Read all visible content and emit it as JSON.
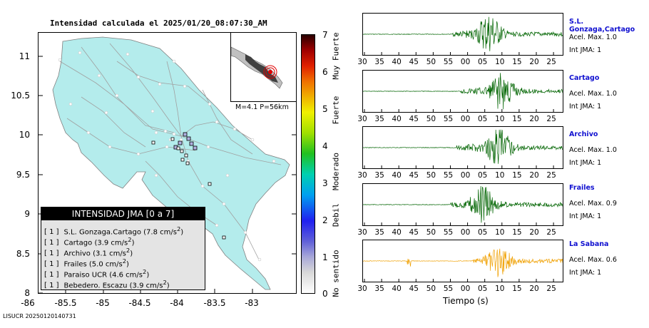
{
  "title": "Intensidad calculada el 2025/01/20_08:07:30_AM",
  "map": {
    "y_ticks": [
      "11",
      "10.5",
      "10",
      "9.5",
      "9",
      "8.5",
      "8"
    ],
    "x_ticks": [
      "-86",
      "-85.5",
      "-85",
      "-84.5",
      "-84",
      "-83.5",
      "-83"
    ],
    "event_info": "M=4.1 P=56km",
    "land_color": "#b4ecec"
  },
  "legend": {
    "title": "INTENSIDAD JMA [0 a 7]",
    "rows": [
      {
        "level": "[ 1 ]",
        "name": "S.L. Gonzaga.Cartago (7.8 cm/s",
        "sup": "2",
        "close": ")"
      },
      {
        "level": "[ 1 ]",
        "name": "Cartago (3.9 cm/s",
        "sup": "2",
        "close": ")"
      },
      {
        "level": "[ 1 ]",
        "name": "Archivo (3.1 cm/s",
        "sup": "2",
        "close": ")"
      },
      {
        "level": "[ 1 ]",
        "name": "Frailes (5.0 cm/s",
        "sup": "2",
        "close": ")"
      },
      {
        "level": "[ 1 ]",
        "name": "Paraiso UCR (4.6 cm/s",
        "sup": "2",
        "close": ")"
      },
      {
        "level": "[ 1 ]",
        "name": "Bebedero. Escazu (3.9 cm/s",
        "sup": "2",
        "close": ")"
      }
    ]
  },
  "colorbar": {
    "numbers": [
      "7",
      "6",
      "5",
      "4",
      "3",
      "2",
      "1",
      "0"
    ],
    "categories": [
      "Muy Fuerte",
      "Fuerte",
      "Moderado",
      "Debil",
      "No sentido"
    ]
  },
  "time_axis_labels": [
    "30",
    "35",
    "40",
    "45",
    "50",
    "55",
    "00",
    "05",
    "10",
    "15",
    "20",
    "25"
  ],
  "time_axis_title": "Tiempo (s)",
  "stations": [
    {
      "name": "S.L. Gonzaga,Cartago",
      "acel": "Acel. Max. 1.0",
      "int": "Int JMA: 1",
      "color": "#006400"
    },
    {
      "name": "Cartago",
      "acel": "Acel. Max. 1.0",
      "int": "Int JMA: 1",
      "color": "#006400"
    },
    {
      "name": "Archivo",
      "acel": "Acel. Max. 1.0",
      "int": "Int JMA: 1",
      "color": "#006400"
    },
    {
      "name": "Frailes",
      "acel": "Acel. Max. 0.9",
      "int": "Int JMA: 1",
      "color": "#006400"
    },
    {
      "name": "La Sabana",
      "acel": "Acel. Max. 0.6",
      "int": "Int JMA: 1",
      "color": "#f0a000"
    }
  ],
  "footer": "LISUCR 20250120140731"
}
